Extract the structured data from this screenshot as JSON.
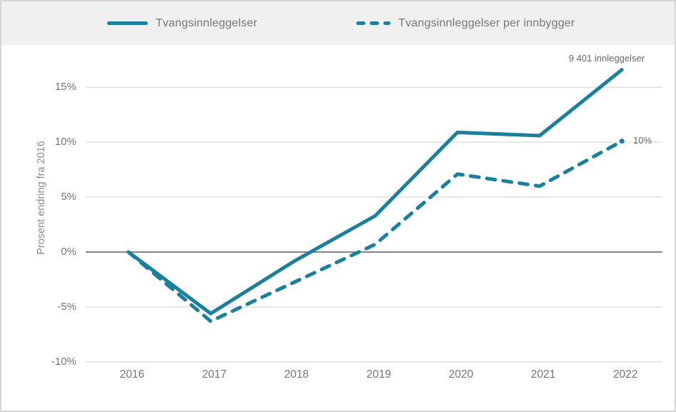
{
  "chart_data": {
    "type": "line",
    "x_labels": [
      "2016",
      "2017",
      "2018",
      "2019",
      "2020",
      "2021",
      "2022"
    ],
    "ylabel": "Prosent endring fra 2016",
    "y_ticks": [
      {
        "value": 15,
        "label": "15%"
      },
      {
        "value": 10,
        "label": "10%"
      },
      {
        "value": 5,
        "label": "5%"
      },
      {
        "value": 0,
        "label": "0%"
      },
      {
        "value": -5,
        "label": "-5%"
      },
      {
        "value": -10,
        "label": "-10%"
      }
    ],
    "ylim": [
      -11.5,
      18
    ],
    "grid": true,
    "legend_position": "top",
    "series": [
      {
        "name": "Tvangsinnleggelser",
        "dash": false,
        "values": [
          0,
          -5.6,
          -0.9,
          3.3,
          10.9,
          10.6,
          16.6
        ],
        "end_annotation": "9 401 innleggelser"
      },
      {
        "name": "Tvangsinnleggelser per innbygger",
        "dash": true,
        "values": [
          0,
          -6.3,
          -2.8,
          0.7,
          7.1,
          6.0,
          10.1
        ],
        "end_annotation": "10%"
      }
    ],
    "colors": {
      "line": "#1b7f9e",
      "gridline": "#e2e2e2",
      "zero_line": "#858585",
      "legend_band": "#f0f0f0"
    }
  }
}
